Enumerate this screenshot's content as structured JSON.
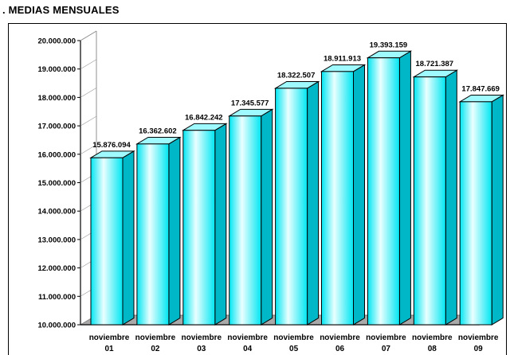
{
  "title": ". MEDIAS MENSUALES",
  "chart_data": {
    "type": "bar",
    "title": ". MEDIAS MENSUALES",
    "xlabel": "",
    "ylabel": "",
    "ylim": [
      10000000,
      20000000
    ],
    "y_ticks": [
      10000000,
      11000000,
      12000000,
      13000000,
      14000000,
      15000000,
      16000000,
      17000000,
      18000000,
      19000000,
      20000000
    ],
    "y_tick_labels": [
      "10.000.000",
      "11.000.000",
      "12.000.000",
      "13.000.000",
      "14.000.000",
      "15.000.000",
      "16.000.000",
      "17.000.000",
      "18.000.000",
      "19.000.000",
      "20.000.000"
    ],
    "categories": [
      [
        "noviembre",
        "01"
      ],
      [
        "noviembre",
        "02"
      ],
      [
        "noviembre",
        "03"
      ],
      [
        "noviembre",
        "04"
      ],
      [
        "noviembre",
        "05"
      ],
      [
        "noviembre",
        "06"
      ],
      [
        "noviembre",
        "07"
      ],
      [
        "noviembre",
        "08"
      ],
      [
        "noviembre",
        "09"
      ]
    ],
    "values": [
      15876094,
      16362602,
      16842242,
      17345577,
      18322507,
      18911913,
      19393159,
      18721387,
      17847669
    ],
    "value_labels": [
      "15.876.094",
      "16.362.602",
      "16.842.242",
      "17.345.577",
      "18.322.507",
      "18.911.913",
      "19.393.159",
      "18.721.387",
      "17.847.669"
    ],
    "grid": false,
    "legend": "none",
    "colors": {
      "bar_front": "#00e6f2",
      "bar_highlight": "#eaffff",
      "bar_top": "#9ffaff",
      "bar_side": "#00b7c7",
      "floor": "#a9a9a9",
      "outline": "#000000"
    }
  }
}
